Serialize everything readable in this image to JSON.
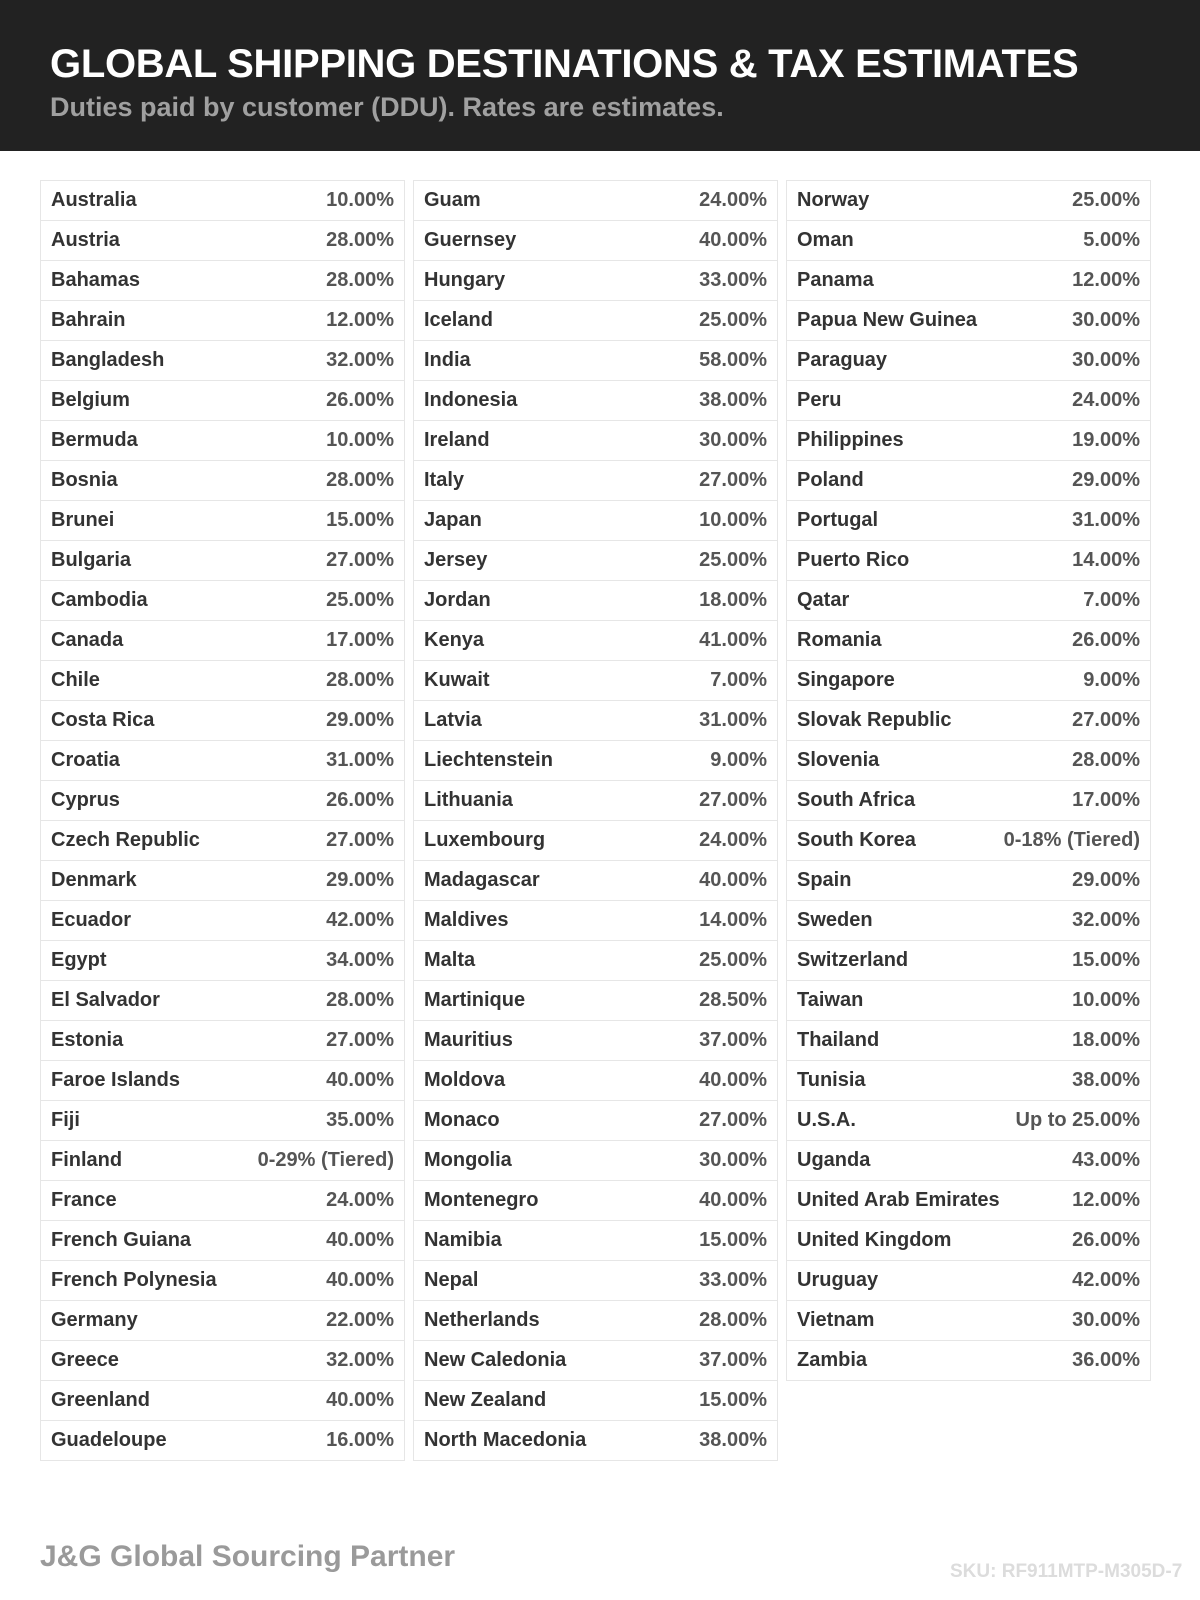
{
  "header": {
    "title": "GLOBAL SHIPPING DESTINATIONS & TAX ESTIMATES",
    "subtitle": "Duties paid by customer (DDU). Rates are estimates."
  },
  "columns": [
    [
      [
        "Australia",
        "10.00%"
      ],
      [
        "Austria",
        "28.00%"
      ],
      [
        "Bahamas",
        "28.00%"
      ],
      [
        "Bahrain",
        "12.00%"
      ],
      [
        "Bangladesh",
        "32.00%"
      ],
      [
        "Belgium",
        "26.00%"
      ],
      [
        "Bermuda",
        "10.00%"
      ],
      [
        "Bosnia",
        "28.00%"
      ],
      [
        "Brunei",
        "15.00%"
      ],
      [
        "Bulgaria",
        "27.00%"
      ],
      [
        "Cambodia",
        "25.00%"
      ],
      [
        "Canada",
        "17.00%"
      ],
      [
        "Chile",
        "28.00%"
      ],
      [
        "Costa Rica",
        "29.00%"
      ],
      [
        "Croatia",
        "31.00%"
      ],
      [
        "Cyprus",
        "26.00%"
      ],
      [
        "Czech Republic",
        "27.00%"
      ],
      [
        "Denmark",
        "29.00%"
      ],
      [
        "Ecuador",
        "42.00%"
      ],
      [
        "Egypt",
        "34.00%"
      ],
      [
        "El Salvador",
        "28.00%"
      ],
      [
        "Estonia",
        "27.00%"
      ],
      [
        "Faroe Islands",
        "40.00%"
      ],
      [
        "Fiji",
        "35.00%"
      ],
      [
        "Finland",
        "0-29% (Tiered)"
      ],
      [
        "France",
        "24.00%"
      ],
      [
        "French Guiana",
        "40.00%"
      ],
      [
        "French Polynesia",
        "40.00%"
      ],
      [
        "Germany",
        "22.00%"
      ],
      [
        "Greece",
        "32.00%"
      ],
      [
        "Greenland",
        "40.00%"
      ],
      [
        "Guadeloupe",
        "16.00%"
      ]
    ],
    [
      [
        "Guam",
        "24.00%"
      ],
      [
        "Guernsey",
        "40.00%"
      ],
      [
        "Hungary",
        "33.00%"
      ],
      [
        "Iceland",
        "25.00%"
      ],
      [
        "India",
        "58.00%"
      ],
      [
        "Indonesia",
        "38.00%"
      ],
      [
        "Ireland",
        "30.00%"
      ],
      [
        "Italy",
        "27.00%"
      ],
      [
        "Japan",
        "10.00%"
      ],
      [
        "Jersey",
        "25.00%"
      ],
      [
        "Jordan",
        "18.00%"
      ],
      [
        "Kenya",
        "41.00%"
      ],
      [
        "Kuwait",
        "7.00%"
      ],
      [
        "Latvia",
        "31.00%"
      ],
      [
        "Liechtenstein",
        "9.00%"
      ],
      [
        "Lithuania",
        "27.00%"
      ],
      [
        "Luxembourg",
        "24.00%"
      ],
      [
        "Madagascar",
        "40.00%"
      ],
      [
        "Maldives",
        "14.00%"
      ],
      [
        "Malta",
        "25.00%"
      ],
      [
        "Martinique",
        "28.50%"
      ],
      [
        "Mauritius",
        "37.00%"
      ],
      [
        "Moldova",
        "40.00%"
      ],
      [
        "Monaco",
        "27.00%"
      ],
      [
        "Mongolia",
        "30.00%"
      ],
      [
        "Montenegro",
        "40.00%"
      ],
      [
        "Namibia",
        "15.00%"
      ],
      [
        "Nepal",
        "33.00%"
      ],
      [
        "Netherlands",
        "28.00%"
      ],
      [
        "New Caledonia",
        "37.00%"
      ],
      [
        "New Zealand",
        "15.00%"
      ],
      [
        "North Macedonia",
        "38.00%"
      ]
    ],
    [
      [
        "Norway",
        "25.00%"
      ],
      [
        "Oman",
        "5.00%"
      ],
      [
        "Panama",
        "12.00%"
      ],
      [
        "Papua New Guinea",
        "30.00%"
      ],
      [
        "Paraguay",
        "30.00%"
      ],
      [
        "Peru",
        "24.00%"
      ],
      [
        "Philippines",
        "19.00%"
      ],
      [
        "Poland",
        "29.00%"
      ],
      [
        "Portugal",
        "31.00%"
      ],
      [
        "Puerto Rico",
        "14.00%"
      ],
      [
        "Qatar",
        "7.00%"
      ],
      [
        "Romania",
        "26.00%"
      ],
      [
        "Singapore",
        "9.00%"
      ],
      [
        "Slovak Republic",
        "27.00%"
      ],
      [
        "Slovenia",
        "28.00%"
      ],
      [
        "South Africa",
        "17.00%"
      ],
      [
        "South Korea",
        "0-18% (Tiered)"
      ],
      [
        "Spain",
        "29.00%"
      ],
      [
        "Sweden",
        "32.00%"
      ],
      [
        "Switzerland",
        "15.00%"
      ],
      [
        "Taiwan",
        "10.00%"
      ],
      [
        "Thailand",
        "18.00%"
      ],
      [
        "Tunisia",
        "38.00%"
      ],
      [
        "U.S.A.",
        "Up to 25.00%"
      ],
      [
        "Uganda",
        "43.00%"
      ],
      [
        "United Arab Emirates",
        "12.00%"
      ],
      [
        "United Kingdom",
        "26.00%"
      ],
      [
        "Uruguay",
        "42.00%"
      ],
      [
        "Vietnam",
        "30.00%"
      ],
      [
        "Zambia",
        "36.00%"
      ]
    ]
  ],
  "footer": {
    "brand": "J&G Global Sourcing Partner",
    "sku": "SKU: RF911MTP-M305D-7"
  }
}
